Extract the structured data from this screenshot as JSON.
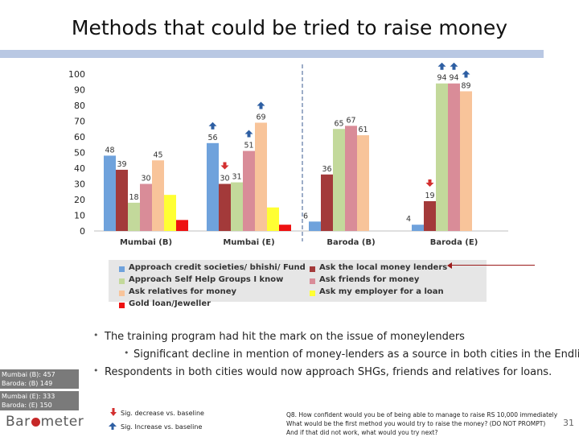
{
  "title": "Methods that could be tried to raise money",
  "colors": {
    "topbar": "#b9c8e3",
    "up_arrow": "#2e5fa3",
    "down_arrow": "#d32f2f"
  },
  "chart_data": {
    "type": "bar",
    "categories": [
      "Mumbai (B)",
      "Mumbai (E)",
      "Baroda (B)",
      "Baroda (E)"
    ],
    "ylim": [
      0,
      100
    ],
    "yticks": [
      0,
      10,
      20,
      30,
      40,
      50,
      60,
      70,
      80,
      90,
      100
    ],
    "grid": false,
    "legend_position": "bottom",
    "series": [
      {
        "name": "Approach credit societies/ bhishi/ Fund",
        "color": "#6fa2dc",
        "values": [
          48,
          56,
          6,
          4
        ],
        "labels": [
          "48",
          "56",
          "6",
          "4"
        ]
      },
      {
        "name": "Ask the local money lenders",
        "color": "#a33a3a",
        "values": [
          39,
          30,
          36,
          19
        ],
        "labels": [
          "39",
          "30",
          "36",
          "19"
        ]
      },
      {
        "name": "Approach Self Help Groups I know",
        "color": "#c3d99b",
        "values": [
          18,
          31,
          65,
          94
        ],
        "labels": [
          "18",
          "31",
          "65",
          "94"
        ]
      },
      {
        "name": "Ask friends for money",
        "color": "#d98c98",
        "values": [
          30,
          51,
          67,
          94
        ],
        "labels": [
          "30",
          "51",
          "67",
          "94"
        ]
      },
      {
        "name": "Ask relatives for money",
        "color": "#f8c49a",
        "values": [
          45,
          69,
          61,
          89
        ],
        "labels": [
          "45",
          "69",
          "61",
          "89"
        ]
      },
      {
        "name": "Ask my employer for a loan",
        "color": "#ffff33",
        "values": [
          23,
          15,
          null,
          null
        ],
        "labels": [
          "",
          "",
          "",
          ""
        ]
      },
      {
        "name": "Gold loan/Jeweller",
        "color": "#ee1111",
        "values": [
          7,
          4,
          null,
          null
        ],
        "labels": [
          "",
          "",
          "",
          ""
        ]
      }
    ],
    "annotations": {
      "sig_increase": [
        {
          "series": 0,
          "category": 1
        },
        {
          "series": 3,
          "category": 1
        },
        {
          "series": 4,
          "category": 1
        },
        {
          "series": 2,
          "category": 3
        },
        {
          "series": 3,
          "category": 3
        },
        {
          "series": 4,
          "category": 3
        }
      ],
      "sig_decrease": [
        {
          "series": 1,
          "category": 1
        },
        {
          "series": 1,
          "category": 3
        }
      ]
    }
  },
  "bullets": {
    "b1": "The training program had hit the mark on the issue of moneylenders",
    "b1_sub": "Significant decline in mention of money-lenders as a source in both cities in the Endline",
    "b2": "Respondents in both cities would now approach SHGs, friends and relatives for loans."
  },
  "sample_sizes": {
    "box1_line1": "Mumbai (B): 457",
    "box1_line2": "Baroda: (B) 149",
    "box2_line1": "Mumbai (E): 333",
    "box2_line2": "Baroda: (E) 150"
  },
  "logo": {
    "pre": "Bar",
    "post": "meter"
  },
  "sig_legend": {
    "decrease": "Sig. decrease vs. baseline",
    "increase": "Sig. Increase vs. baseline"
  },
  "question": {
    "line1": "Q8. How confident would you be of being able to manage to raise RS 10,000 immediately",
    "line2": "What would be the first method you would try to raise the money? (DO NOT PROMPT)",
    "line3": "And if that did not work, what would you try next?"
  },
  "page_number": "31"
}
